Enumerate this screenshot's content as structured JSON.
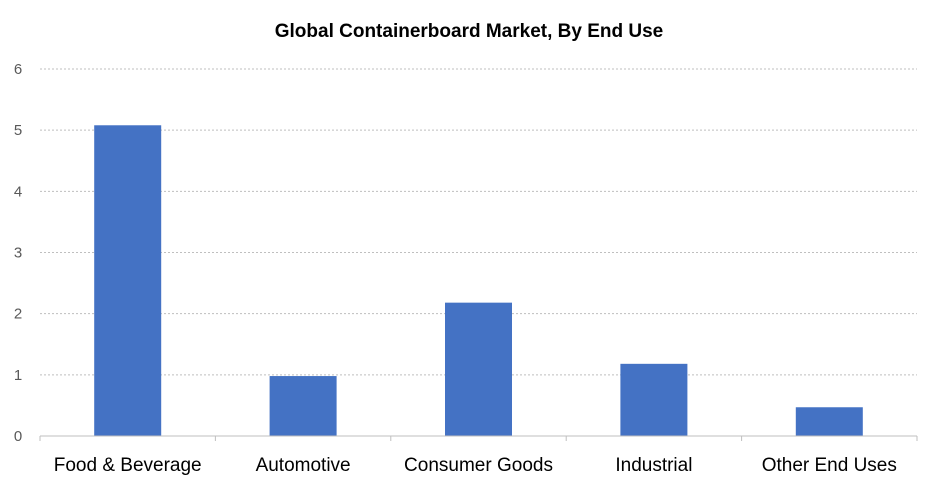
{
  "chart_data": {
    "type": "bar",
    "title": "Global Containerboard Market, By End Use",
    "xlabel": "",
    "ylabel": "",
    "categories": [
      "Food & Beverage",
      "Automotive",
      "Consumer Goods",
      "Industrial",
      "Other End Uses"
    ],
    "series": [
      {
        "values": [
          5.08,
          0.98,
          2.18,
          1.18,
          0.47
        ],
        "color": "#4472c4"
      }
    ],
    "ylim": [
      0,
      6
    ],
    "yticks": [
      0,
      1,
      2,
      3,
      4,
      5,
      6
    ],
    "grid": true,
    "legend": "none"
  }
}
